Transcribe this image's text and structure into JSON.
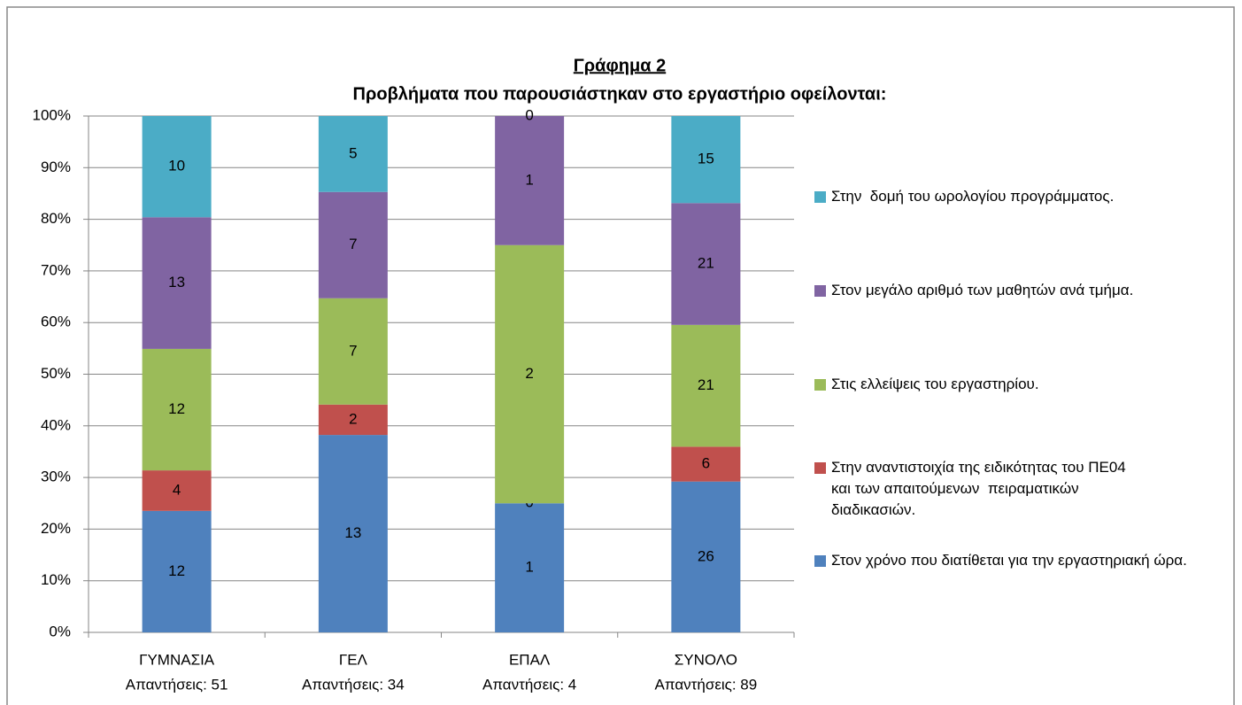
{
  "chart_data": {
    "type": "stacked_bar_100",
    "title": "Γράφημα 2",
    "subtitle": "Προβλήματα που παρουσιάστηκαν στο εργαστήριο  οφείλονται:",
    "categories": [
      "ΓΥΜΝΑΣΙΑ",
      "ΓΕΛ",
      "ΕΠΑΛ",
      "ΣΥΝΟΛΟ"
    ],
    "category_sublabels": [
      "Απαντήσεις: 51",
      "Απαντήσεις: 34",
      "Απαντήσεις: 4",
      "Απαντήσεις: 89"
    ],
    "series": [
      {
        "name": "Στον χρόνο που διατίθεται για την εργαστηριακή ώρα.",
        "color": "#4f81bd",
        "values": [
          12,
          13,
          1,
          26
        ]
      },
      {
        "name": "Στην αναντιστοιχία της ειδικότητας του ΠΕ04 και των απαιτούμενων  πειραματικών διαδικασιών.",
        "color": "#c0504d",
        "values": [
          4,
          2,
          0,
          6
        ]
      },
      {
        "name": "Στις ελλείψεις του εργαστηρίου.",
        "color": "#9bbb59",
        "values": [
          12,
          7,
          2,
          21
        ]
      },
      {
        "name": "Στον μεγάλο αριθμό των μαθητών ανά τμήμα.",
        "color": "#8064a2",
        "values": [
          13,
          7,
          1,
          21
        ]
      },
      {
        "name": "Στην  δομή του ωρολογίου προγράμματος.",
        "color": "#4bacc6",
        "values": [
          10,
          5,
          0,
          15
        ]
      }
    ],
    "ylim": [
      0,
      100
    ],
    "yticks": [
      {
        "value": 0,
        "label": "0%"
      },
      {
        "value": 10,
        "label": "10%"
      },
      {
        "value": 20,
        "label": "20%"
      },
      {
        "value": 30,
        "label": "30%"
      },
      {
        "value": 40,
        "label": "40%"
      },
      {
        "value": 50,
        "label": "50%"
      },
      {
        "value": 60,
        "label": "60%"
      },
      {
        "value": 70,
        "label": "70%"
      },
      {
        "value": 80,
        "label": "80%"
      },
      {
        "value": 90,
        "label": "90%"
      },
      {
        "value": 100,
        "label": "100%"
      }
    ],
    "grid": true,
    "legend": "right"
  }
}
